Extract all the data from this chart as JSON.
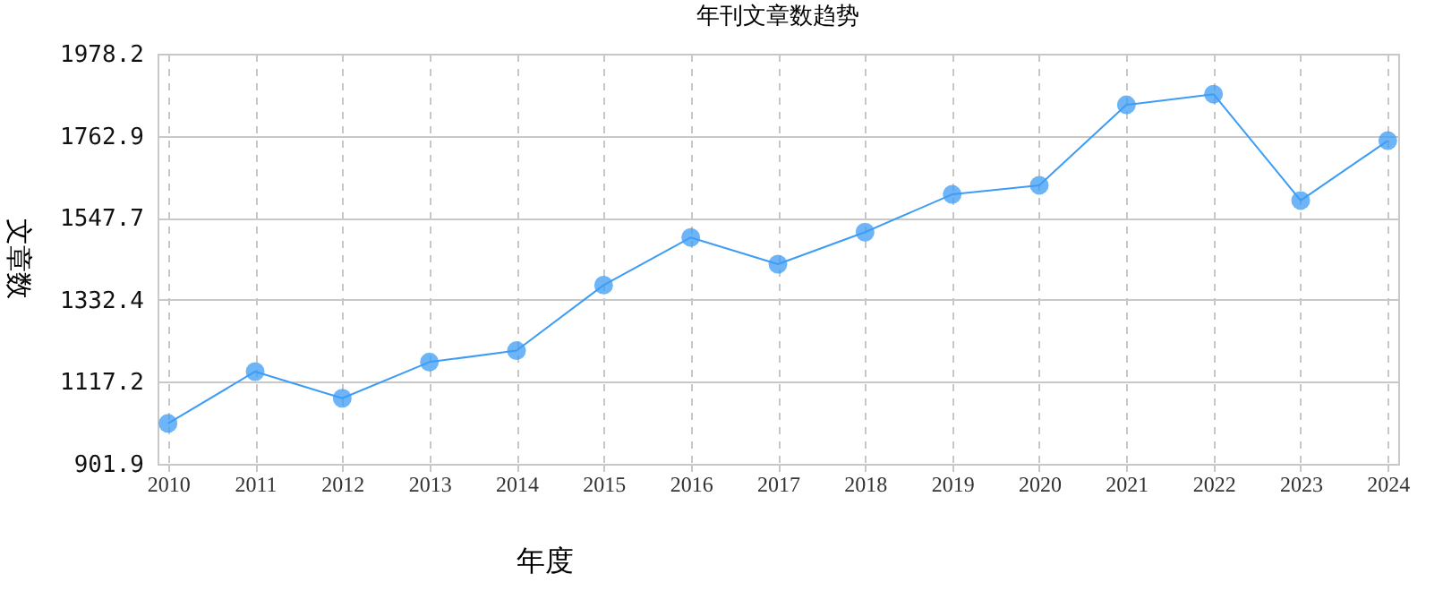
{
  "chart_data": {
    "type": "line",
    "title": "年刊文章数趋势",
    "xlabel": "年度",
    "ylabel": "文章数",
    "categories": [
      "2010",
      "2011",
      "2012",
      "2013",
      "2014",
      "2015",
      "2016",
      "2017",
      "2018",
      "2019",
      "2020",
      "2021",
      "2022",
      "2023",
      "2024"
    ],
    "series": [
      {
        "color": "#3d9cf5",
        "values": [
          1008,
          1144,
          1074,
          1169,
          1199,
          1371,
          1496,
          1426,
          1510,
          1609,
          1633,
          1844,
          1872,
          1593,
          1750
        ]
      }
    ],
    "ylim": [
      901.9,
      1978.2
    ],
    "yticks": [
      901.9,
      1117.2,
      1332.4,
      1547.7,
      1762.9,
      1978.2
    ],
    "grid": true,
    "marker": "circle",
    "line_style": "solid"
  }
}
